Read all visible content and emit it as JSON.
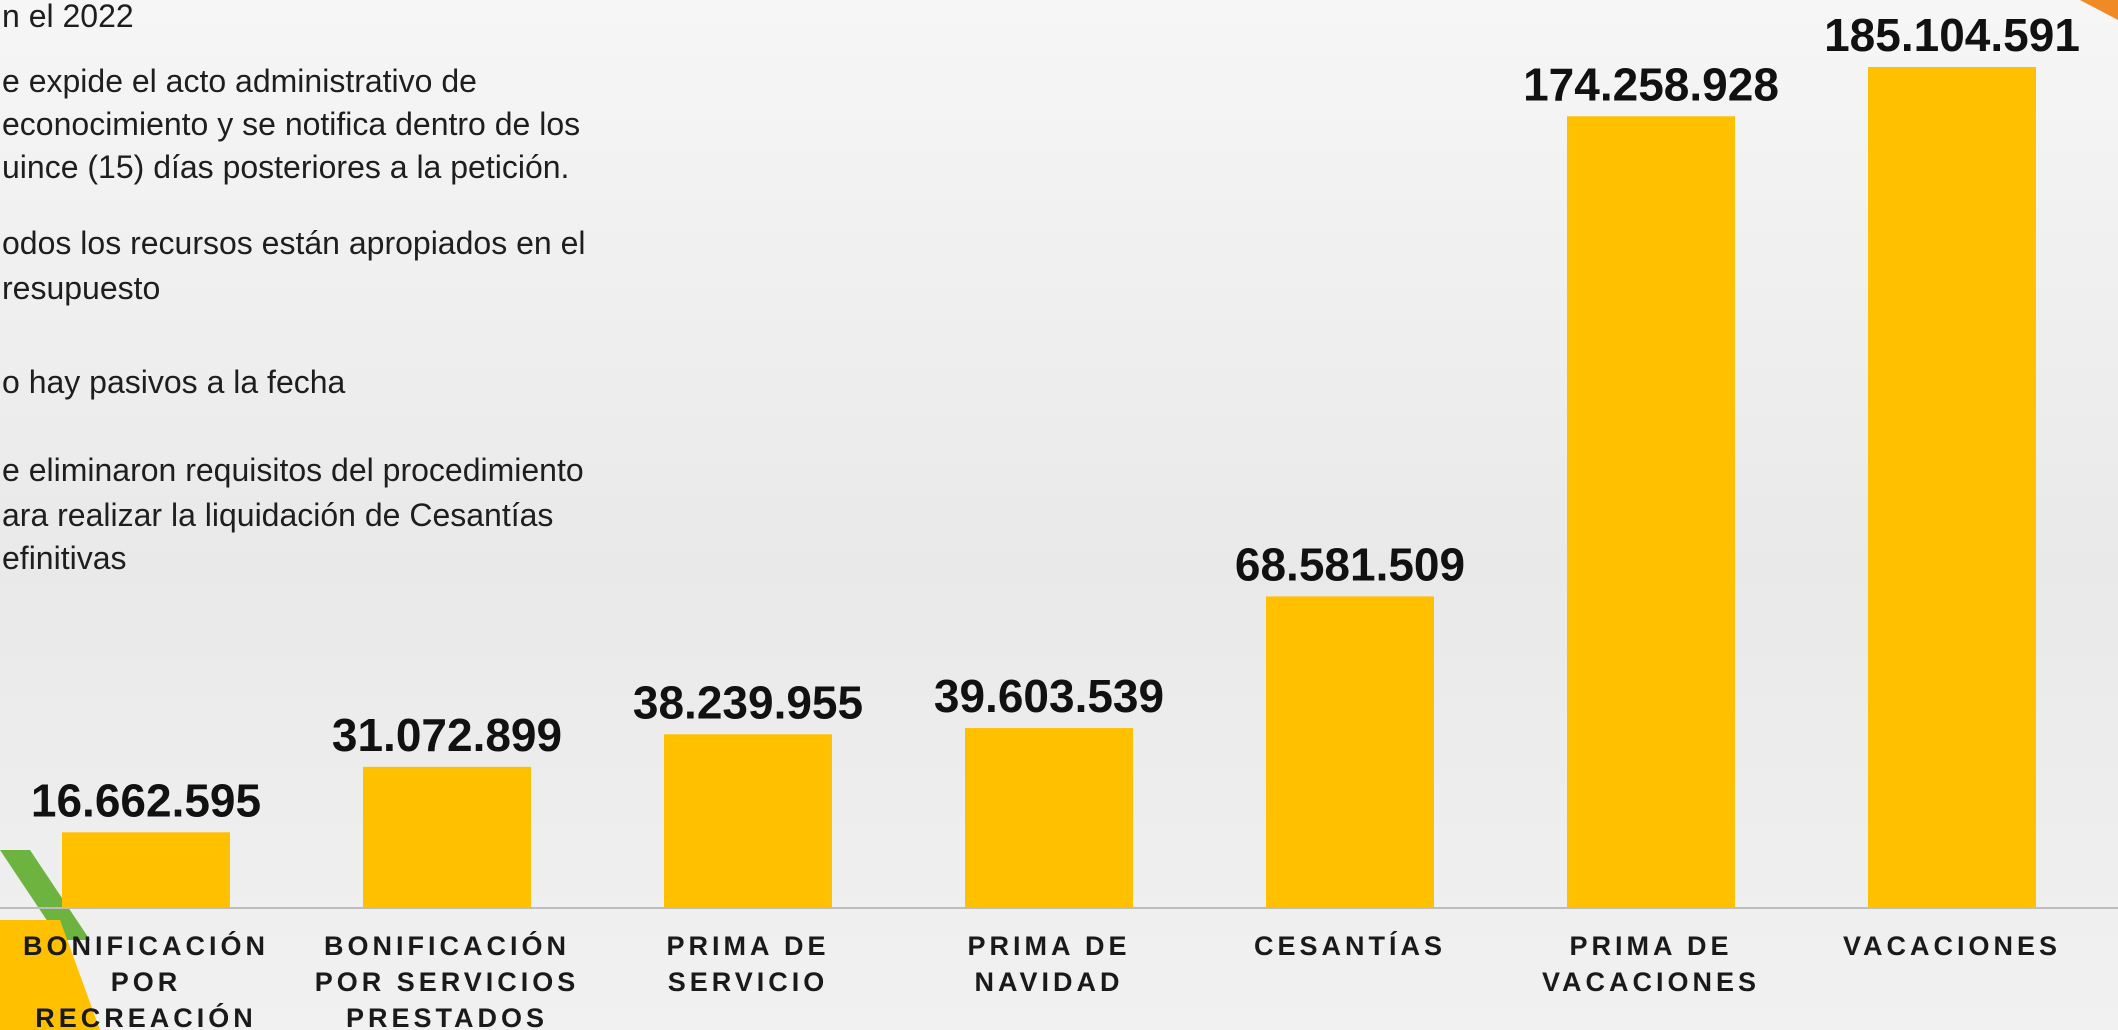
{
  "bullets": [
    [
      "n el 2022"
    ],
    [
      "e expide el acto administrativo de",
      "econocimiento y se notifica dentro de los",
      "uince (15) días posteriores a la petición."
    ],
    [
      "odos los recursos están apropiados  en el",
      "resupuesto"
    ],
    [
      "o hay pasivos a la fecha"
    ],
    [
      "e eliminaron requisitos del procedimiento",
      "ara realizar la liquidación de Cesantías",
      "efinitivas"
    ]
  ],
  "chart_data": {
    "type": "bar",
    "color": "#ffc000",
    "categories": [
      [
        "BONIFICACIÓN",
        "POR",
        "RECREACIÓN"
      ],
      [
        "BONIFICACIÓN",
        "POR SERVICIOS",
        "PRESTADOS"
      ],
      [
        "PRIMA DE",
        "SERVICIO"
      ],
      [
        "PRIMA DE",
        "NAVIDAD"
      ],
      [
        "CESANTÍAS"
      ],
      [
        "PRIMA DE",
        "VACACIONES"
      ],
      [
        "VACACIONES"
      ]
    ],
    "values": [
      16662595,
      31072899,
      38239955,
      39603539,
      68581509,
      174258928,
      185104591
    ],
    "value_labels": [
      "16.662.595",
      "31.072.899",
      "38.239.955",
      "39.603.539",
      "68.581.509",
      "174.258.928",
      "185.104.591"
    ]
  }
}
